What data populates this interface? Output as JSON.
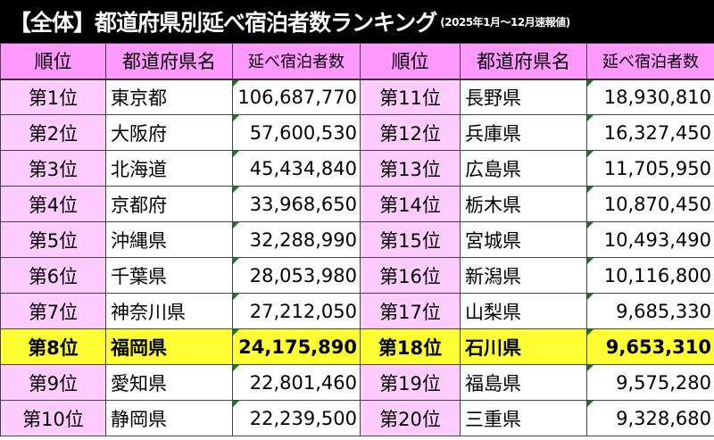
{
  "title": {
    "main": "【全体】都道府県別延べ宿泊者数ランキング",
    "sub": "(2025年1月～12月速報値)"
  },
  "headers": [
    "順位",
    "都道府県名",
    "延べ宿泊者数",
    "順位",
    "都道府県名",
    "延べ宿泊者数"
  ],
  "highlight_color": "#ffff33",
  "rows": [
    {
      "left": {
        "rank": "第1位",
        "pref": "東京都",
        "value": "106,687,770"
      },
      "right": {
        "rank": "第11位",
        "pref": "長野県",
        "value": "18,930,810"
      }
    },
    {
      "left": {
        "rank": "第2位",
        "pref": "大阪府",
        "value": "57,600,530"
      },
      "right": {
        "rank": "第12位",
        "pref": "兵庫県",
        "value": "16,327,450"
      }
    },
    {
      "left": {
        "rank": "第3位",
        "pref": "北海道",
        "value": "45,434,840"
      },
      "right": {
        "rank": "第13位",
        "pref": "広島県",
        "value": "11,705,950"
      }
    },
    {
      "left": {
        "rank": "第4位",
        "pref": "京都府",
        "value": "33,968,650"
      },
      "right": {
        "rank": "第14位",
        "pref": "栃木県",
        "value": "10,870,450"
      }
    },
    {
      "left": {
        "rank": "第5位",
        "pref": "沖縄県",
        "value": "32,288,990"
      },
      "right": {
        "rank": "第15位",
        "pref": "宮城県",
        "value": "10,493,490"
      }
    },
    {
      "left": {
        "rank": "第6位",
        "pref": "千葉県",
        "value": "28,053,980"
      },
      "right": {
        "rank": "第16位",
        "pref": "新潟県",
        "value": "10,116,800"
      }
    },
    {
      "left": {
        "rank": "第7位",
        "pref": "神奈川県",
        "value": "27,212,050"
      },
      "right": {
        "rank": "第17位",
        "pref": "山梨県",
        "value": "9,685,330"
      }
    },
    {
      "left": {
        "rank": "第8位",
        "pref": "福岡県",
        "value": "24,175,890",
        "highlighted": true
      },
      "right": {
        "rank": "第18位",
        "pref": "石川県",
        "value": "9,653,310"
      }
    },
    {
      "left": {
        "rank": "第9位",
        "pref": "愛知県",
        "value": "22,801,460"
      },
      "right": {
        "rank": "第19位",
        "pref": "福島県",
        "value": "9,575,280"
      }
    },
    {
      "left": {
        "rank": "第10位",
        "pref": "静岡県",
        "value": "22,239,500"
      },
      "right": {
        "rank": "第20位",
        "pref": "三重県",
        "value": "9,328,680"
      }
    }
  ]
}
